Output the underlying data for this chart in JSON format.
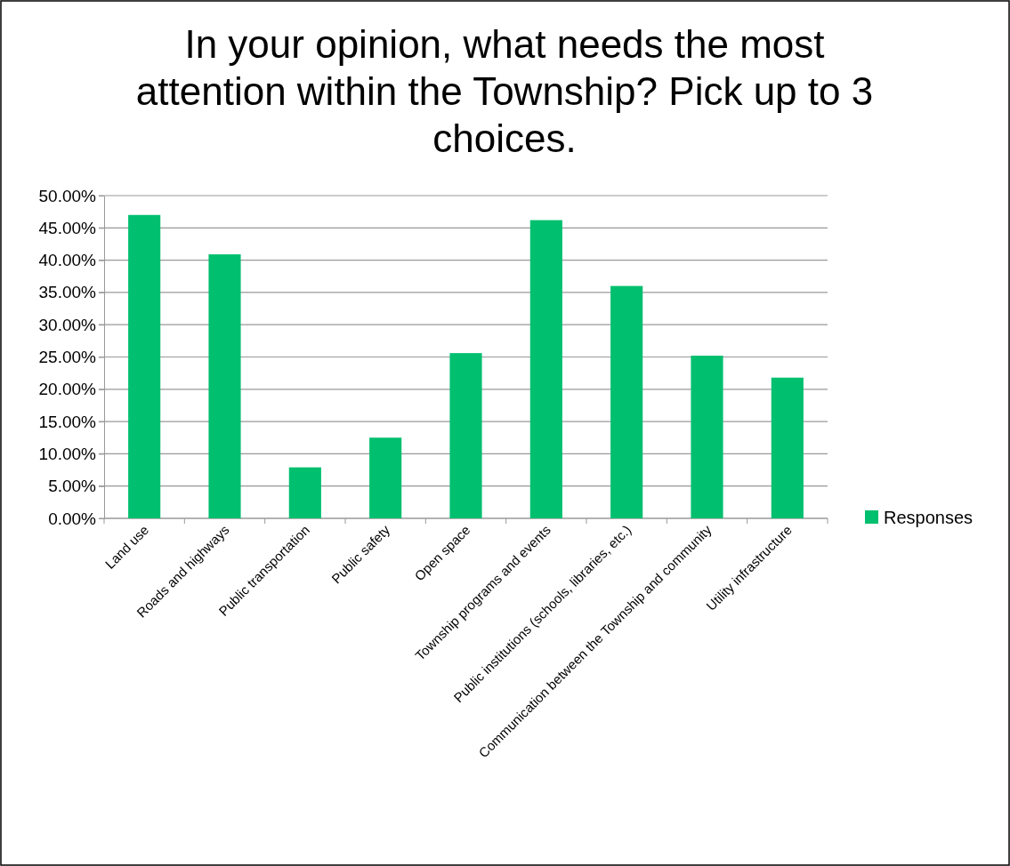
{
  "chart_data": {
    "type": "bar",
    "title": "In your opinion, what needs the most attention within the Township? Pick up to 3 choices.",
    "categories": [
      "Land use",
      "Roads and highways",
      "Public transportation",
      "Public safety",
      "Open space",
      "Township programs and events",
      "Public institutions (schools, libraries, etc.)",
      "Communication between the Township and community",
      "Utility infrastructure"
    ],
    "series": [
      {
        "name": "Responses",
        "color": "#00bf6f",
        "values": [
          47.0,
          40.9,
          7.9,
          12.5,
          25.6,
          46.2,
          36.0,
          25.2,
          21.8
        ]
      }
    ],
    "ylim": [
      0,
      50
    ],
    "yticks": [
      {
        "value": 0,
        "label": "0.00%"
      },
      {
        "value": 5,
        "label": "5.00%"
      },
      {
        "value": 10,
        "label": "10.00%"
      },
      {
        "value": 15,
        "label": "15.00%"
      },
      {
        "value": 20,
        "label": "20.00%"
      },
      {
        "value": 25,
        "label": "25.00%"
      },
      {
        "value": 30,
        "label": "30.00%"
      },
      {
        "value": 35,
        "label": "35.00%"
      },
      {
        "value": 40,
        "label": "40.00%"
      },
      {
        "value": 45,
        "label": "45.00%"
      },
      {
        "value": 50,
        "label": "50.00%"
      }
    ],
    "grid": "y",
    "legend": "right"
  }
}
